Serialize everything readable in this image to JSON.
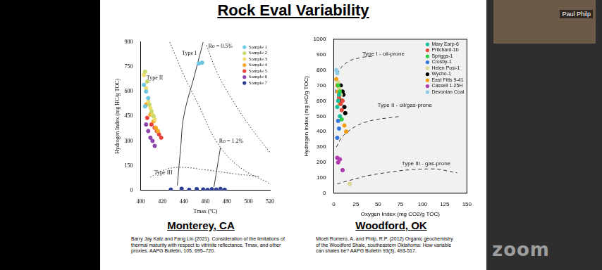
{
  "slide": {
    "title": "Rock Eval Variability",
    "speaker": "Paul Philp",
    "watermark": "zoom"
  },
  "chart_data": [
    {
      "type": "scatter",
      "caption": "Monterey, CA",
      "source": "Barry Jay Katz and Fang Lin (2021). Consideration of the limitations of thermal maturity with respect to vitrinite reflectance, Tmax, and other proxies. AAPG Bulletin, 105, 695–720.",
      "x_label": "Tmax (ºC)",
      "y_label": "Hydrogen Index (mg HC/g TOC)",
      "xlim": [
        400,
        520
      ],
      "xticks": [
        400,
        420,
        440,
        460,
        480,
        500,
        520
      ],
      "ylim": [
        0,
        900
      ],
      "yticks": [
        0,
        150,
        300,
        450,
        600,
        750,
        900
      ],
      "grid": false,
      "legend": "upper right",
      "marker": "circle",
      "series": [
        {
          "name": "Sample 1",
          "color": "#6ec6e6",
          "x": [
            403,
            405,
            407,
            404,
            454,
            457
          ],
          "values": [
            640,
            600,
            560,
            510,
            770,
            775
          ]
        },
        {
          "name": "Sample 2",
          "color": "#c8d86a",
          "x": [
            404,
            406,
            408,
            410,
            412
          ],
          "values": [
            720,
            660,
            520,
            480,
            450
          ]
        },
        {
          "name": "Sample 3",
          "color": "#f0dc6e",
          "x": [
            403,
            405,
            407,
            409,
            411,
            413
          ],
          "values": [
            700,
            620,
            540,
            500,
            460,
            430
          ]
        },
        {
          "name": "Sample 4",
          "color": "#f5a623",
          "x": [
            405,
            409,
            412,
            414,
            416
          ],
          "values": [
            520,
            460,
            420,
            380,
            360
          ]
        },
        {
          "name": "Sample 5",
          "color": "#e8423a",
          "x": [
            406,
            410,
            413,
            415,
            417,
            419
          ],
          "values": [
            440,
            400,
            380,
            360,
            340,
            320
          ]
        },
        {
          "name": "Sample 6",
          "color": "#8e44ad",
          "x": [
            405,
            407,
            409,
            411,
            413
          ],
          "values": [
            400,
            360,
            320,
            300,
            270
          ]
        },
        {
          "name": "Sample 7",
          "color": "#2c3e91",
          "x": [
            428,
            438,
            445,
            452,
            458,
            462,
            466,
            470,
            474,
            478
          ],
          "values": [
            5,
            10,
            4,
            8,
            6,
            3,
            7,
            5,
            9,
            4
          ]
        }
      ],
      "curves": [
        {
          "line_style": "dotted",
          "x": [
            427,
            440,
            455,
            470,
            490,
            520
          ],
          "values": [
            900,
            700,
            500,
            300,
            150,
            40
          ]
        },
        {
          "line_style": "dotted",
          "x": [
            461,
            472,
            485,
            500,
            520
          ],
          "values": [
            880,
            700,
            550,
            400,
            230
          ]
        },
        {
          "line_style": "dotted",
          "x": [
            409,
            420,
            435,
            460,
            488,
            510
          ],
          "values": [
            80,
            120,
            140,
            125,
            100,
            85
          ]
        },
        {
          "line_style": "solid",
          "x": [
            458,
            450,
            440,
            437,
            434
          ],
          "values": [
            900,
            700,
            450,
            250,
            30
          ]
        },
        {
          "line_style": "solid",
          "x": [
            468,
            470,
            472,
            474
          ],
          "values": [
            20,
            100,
            180,
            260
          ]
        }
      ],
      "annotations": [
        {
          "text": "Type I",
          "x": 445,
          "y": 830
        },
        {
          "text": "Type II",
          "x": 413,
          "y": 680
        },
        {
          "text": "Type III",
          "x": 421,
          "y": 105
        },
        {
          "text": "Ro = 0.5%",
          "x": 474,
          "y": 875
        },
        {
          "text": "Ro = 1.2%",
          "x": 484,
          "y": 300
        }
      ]
    },
    {
      "type": "scatter",
      "caption": "Woodford, OK",
      "source": "Miceli Romero, A. and Philp, R.P. (2012) Organic geochemistry of the Woodford Shale, southeastern Oklahoma: How variable can shales be? AAPG Bulletin 93(3), 493-517.",
      "x_label": "Oxygen Index (mg CO2/g TOC)",
      "y_label": "Hydrogen Index (mg HC/g TOC)",
      "xlim": [
        0,
        150
      ],
      "xticks": [
        0,
        25,
        50,
        75,
        100,
        125,
        150
      ],
      "ylim": [
        0,
        1000
      ],
      "yticks": [
        0,
        100,
        200,
        300,
        400,
        500,
        600,
        700,
        800,
        900,
        1000
      ],
      "grid": false,
      "legend": "upper right",
      "marker": "circle",
      "series": [
        {
          "name": "Mary Earp-6",
          "color": "#1abc9c",
          "x": [
            4,
            5,
            6,
            7
          ],
          "values": [
            560,
            600,
            640,
            500
          ]
        },
        {
          "name": "Pritchard-1b",
          "color": "#e74c3c",
          "x": [
            6,
            8,
            9,
            10
          ],
          "values": [
            620,
            580,
            540,
            600
          ]
        },
        {
          "name": "Spriggs-1",
          "color": "#2ecc40",
          "x": [
            5,
            7,
            9
          ],
          "values": [
            700,
            660,
            480
          ]
        },
        {
          "name": "Crosby-1",
          "color": "#3478db",
          "x": [
            4,
            6,
            5
          ],
          "values": [
            360,
            420,
            470
          ]
        },
        {
          "name": "Helen Posi-1",
          "color": "#d8d890",
          "x": [
            5,
            6,
            18,
            8
          ],
          "values": [
            720,
            680,
            60,
            640
          ]
        },
        {
          "name": "Wycho-1",
          "color": "#000000",
          "x": [
            8,
            10,
            11,
            12,
            9,
            13
          ],
          "values": [
            700,
            660,
            640,
            560,
            600,
            520
          ]
        },
        {
          "name": "East Fitts 9-41",
          "color": "#f39c12",
          "x": [
            3,
            4,
            5,
            6,
            7,
            12,
            14
          ],
          "values": [
            740,
            700,
            660,
            620,
            580,
            440,
            400
          ]
        },
        {
          "name": "Cassell 1-25H",
          "color": "#b03ab0",
          "x": [
            4,
            5,
            7,
            10
          ],
          "values": [
            230,
            200,
            220,
            150
          ]
        },
        {
          "name": "Devonian Coal",
          "color": "#8ecae6",
          "x": [
            3,
            4
          ],
          "values": [
            800,
            780
          ]
        }
      ],
      "curves": [
        {
          "line_style": "dashed",
          "x": [
            2,
            5,
            15,
            30,
            45
          ],
          "values": [
            650,
            780,
            850,
            880,
            890
          ]
        },
        {
          "line_style": "dashed",
          "x": [
            3,
            11,
            34,
            75
          ],
          "values": [
            300,
            375,
            458,
            500
          ]
        },
        {
          "line_style": "dashed",
          "x": [
            4,
            49,
            109,
            139
          ],
          "values": [
            62,
            125,
            158,
            133
          ]
        }
      ],
      "annotations": [
        {
          "text": "Type I - oil-prone",
          "x": 56,
          "y": 905
        },
        {
          "text": "Type II - oil/gas-prone",
          "x": 80,
          "y": 570
        },
        {
          "text": "Type III - gas-prone",
          "x": 104,
          "y": 190
        }
      ]
    }
  ]
}
